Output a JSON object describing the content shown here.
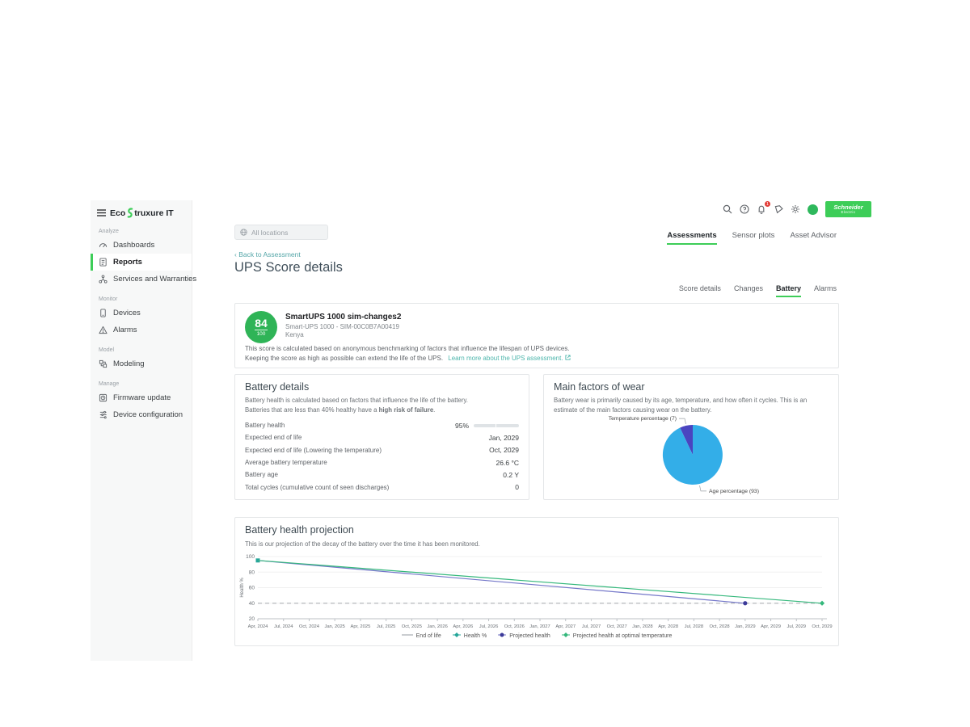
{
  "brand": {
    "eco": "Eco",
    "rest": "truxure IT",
    "accent_color": "#3dcd58"
  },
  "header": {
    "search_chip": "All locations",
    "notification_badge": "1",
    "schneider": {
      "line1": "Schneider",
      "line2": "Electric"
    }
  },
  "sidebar": {
    "sections": [
      {
        "label": "Analyze",
        "items": [
          {
            "label": "Dashboards",
            "icon": "dashboard-icon",
            "active": false
          },
          {
            "label": "Reports",
            "icon": "reports-icon",
            "active": true
          },
          {
            "label": "Services and Warranties",
            "icon": "services-icon",
            "active": false
          }
        ]
      },
      {
        "label": "Monitor",
        "items": [
          {
            "label": "Devices",
            "icon": "devices-icon",
            "active": false
          },
          {
            "label": "Alarms",
            "icon": "alarms-icon",
            "active": false
          }
        ]
      },
      {
        "label": "Model",
        "items": [
          {
            "label": "Modeling",
            "icon": "modeling-icon",
            "active": false
          }
        ]
      },
      {
        "label": "Manage",
        "items": [
          {
            "label": "Firmware update",
            "icon": "firmware-icon",
            "active": false
          },
          {
            "label": "Device configuration",
            "icon": "config-icon",
            "active": false
          }
        ]
      }
    ]
  },
  "top_tabs": {
    "items": [
      "Assessments",
      "Sensor plots",
      "Asset Advisor"
    ],
    "active": 0
  },
  "breadcrumb": {
    "back_label": "Back to Assessment"
  },
  "page": {
    "title": "UPS Score details"
  },
  "sub_tabs": {
    "items": [
      "Score details",
      "Changes",
      "Battery",
      "Alarms"
    ],
    "active": 2
  },
  "score_card": {
    "score": "84",
    "score_max": "100",
    "device_name": "SmartUPS 1000 sim-changes2",
    "device_model": "Smart-UPS 1000 - SIM-00C0B7A00419",
    "location": "Kenya",
    "description_line1": "This score is calculated based on anonymous benchmarking of factors that influence the lifespan of UPS devices.",
    "description_line2": "Keeping the score as high as possible can extend the life of the UPS.",
    "learn_more": "Learn more about the UPS assessment."
  },
  "battery_details": {
    "title": "Battery details",
    "description_line1": "Battery health is calculated based on factors that influence the life of the battery.",
    "description_line2_prefix": "Batteries that are less than 40% healthy have a ",
    "description_line2_bold": "high risk of failure",
    "description_line2_suffix": ".",
    "rows": [
      {
        "label": "Battery health",
        "value": "95%",
        "progress_percent": 95
      },
      {
        "label": "Expected end of life",
        "value": "Jan, 2029"
      },
      {
        "label": "Expected end of life (Lowering the temperature)",
        "value": "Oct, 2029"
      },
      {
        "label": "Average battery temperature",
        "value": "26.6 °C"
      },
      {
        "label": "Battery age",
        "value": "0.2 Y"
      },
      {
        "label": "Total cycles (cumulative count of seen discharges)",
        "value": "0"
      }
    ]
  },
  "wear_card": {
    "title": "Main factors of wear",
    "description": "Battery wear is primarily caused by its age, temperature, and how often it cycles. This is an estimate of the main factors causing wear on the battery."
  },
  "projection_card": {
    "title": "Battery health projection",
    "description": "This is our projection of the decay of the battery over the time it has been monitored."
  },
  "chart_data": [
    {
      "type": "pie",
      "title": "Main factors of wear",
      "labels": [
        "Temperature percentage",
        "Age percentage"
      ],
      "values": [
        7,
        93
      ],
      "colors": [
        "#4a44c0",
        "#33aee8"
      ],
      "annotations": [
        "Temperature percentage (7)",
        "Age percentage (93)"
      ]
    },
    {
      "type": "line",
      "title": "Battery health projection",
      "ylabel": "Health %",
      "ylim": [
        20,
        100
      ],
      "yticks": [
        20,
        40,
        60,
        80,
        100
      ],
      "grid": true,
      "legend_position": "bottom",
      "x": [
        "Apr, 2024",
        "Jul, 2024",
        "Oct, 2024",
        "Jan, 2025",
        "Apr, 2025",
        "Jul, 2025",
        "Oct, 2025",
        "Jan, 2026",
        "Apr, 2026",
        "Jul, 2026",
        "Oct, 2026",
        "Jan, 2027",
        "Apr, 2027",
        "Jul, 2027",
        "Oct, 2027",
        "Jan, 2028",
        "Apr, 2028",
        "Jul, 2028",
        "Oct, 2028",
        "Jan, 2029",
        "Apr, 2029",
        "Jul, 2029",
        "Oct, 2029"
      ],
      "series": [
        {
          "name": "End of life",
          "style": "dashed",
          "color": "#aeb2b6",
          "points": [
            [
              0,
              40
            ],
            [
              22,
              40
            ]
          ],
          "marker": "none",
          "legend_marker": "dash"
        },
        {
          "name": "Health %",
          "style": "scatter",
          "color": "#26a69a",
          "points": [
            [
              0,
              95
            ]
          ],
          "marker": "square",
          "marker_points": [
            [
              0,
              95
            ]
          ],
          "legend_marker": "diamond"
        },
        {
          "name": "Projected health",
          "style": "solid",
          "color": "#7477c9",
          "marker_color": "#3c3a99",
          "points": [
            [
              0,
              95
            ],
            [
              19,
              40
            ]
          ],
          "marker": "circle",
          "marker_points": [
            [
              19,
              40
            ]
          ],
          "legend_marker": "circle"
        },
        {
          "name": "Projected health at optimal temperature",
          "style": "solid",
          "color": "#35b87c",
          "points": [
            [
              0,
              95
            ],
            [
              22,
              40
            ]
          ],
          "marker": "diamond",
          "marker_points": [
            [
              22,
              40
            ]
          ],
          "legend_marker": "diamond"
        }
      ]
    }
  ]
}
